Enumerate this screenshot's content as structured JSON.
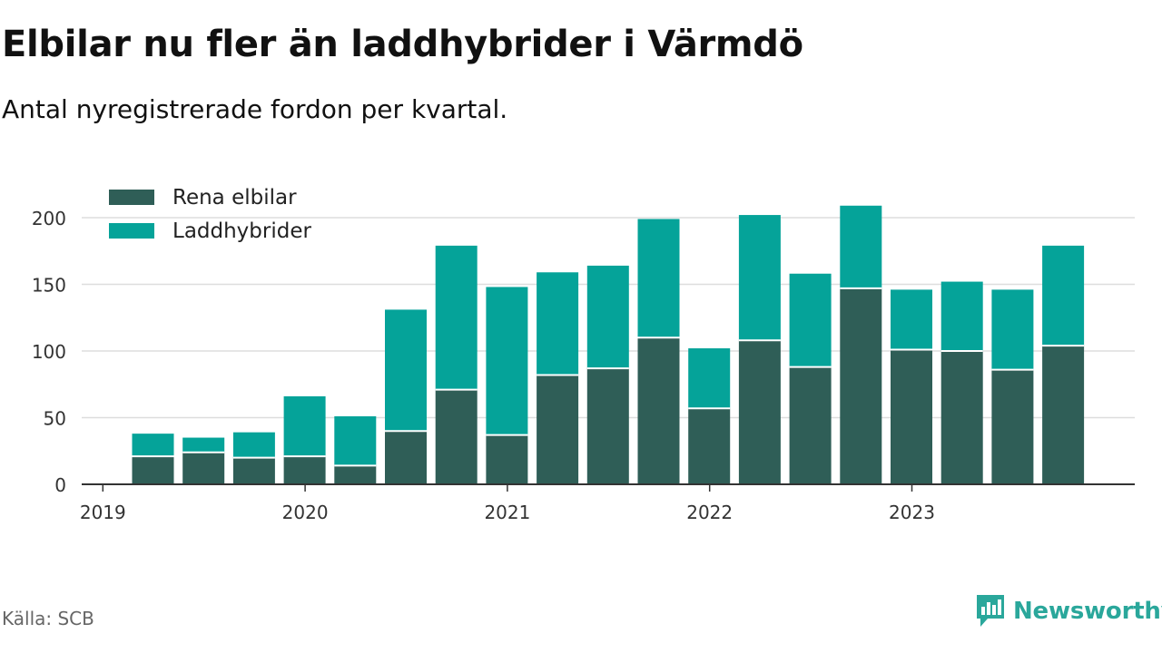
{
  "header": {
    "title": "Elbilar nu fler än laddhybrider i Värmdö",
    "subtitle": "Antal nyregistrerade fordon per kvartal."
  },
  "footer": {
    "source": "Källa: SCB",
    "brand": "Newsworthy"
  },
  "colors": {
    "elbilar": "#2f5e57",
    "laddhybrider": "#05a399",
    "grid": "#dddddd",
    "axis": "#333333",
    "brand": "#2aa79b"
  },
  "chart_data": {
    "type": "bar",
    "stacked": true,
    "title": "Elbilar nu fler än laddhybrider i Värmdö",
    "subtitle": "Antal nyregistrerade fordon per kvartal.",
    "xlabel": "",
    "ylabel": "",
    "ylim": [
      0,
      220
    ],
    "yticks": [
      0,
      50,
      100,
      150,
      200
    ],
    "grid": true,
    "legend_position": "top-left",
    "categories": [
      "2019 Q1",
      "2019 Q2",
      "2019 Q3",
      "2019 Q4",
      "2020 Q1",
      "2020 Q2",
      "2020 Q3",
      "2020 Q4",
      "2021 Q1",
      "2021 Q2",
      "2021 Q3",
      "2021 Q4",
      "2022 Q1",
      "2022 Q2",
      "2022 Q3",
      "2022 Q4",
      "2023 Q1",
      "2023 Q2",
      "2023 Q3"
    ],
    "x_tick_labels": [
      "2019",
      "2020",
      "2021",
      "2022",
      "2023"
    ],
    "series": [
      {
        "name": "Rena elbilar",
        "values": [
          21,
          24,
          20,
          21,
          14,
          40,
          71,
          37,
          82,
          87,
          110,
          57,
          108,
          88,
          147,
          101,
          100,
          86,
          104
        ]
      },
      {
        "name": "Laddhybrider",
        "values": [
          17,
          11,
          19,
          45,
          37,
          91,
          108,
          111,
          77,
          77,
          89,
          45,
          94,
          70,
          62,
          45,
          52,
          60,
          75
        ]
      }
    ]
  }
}
